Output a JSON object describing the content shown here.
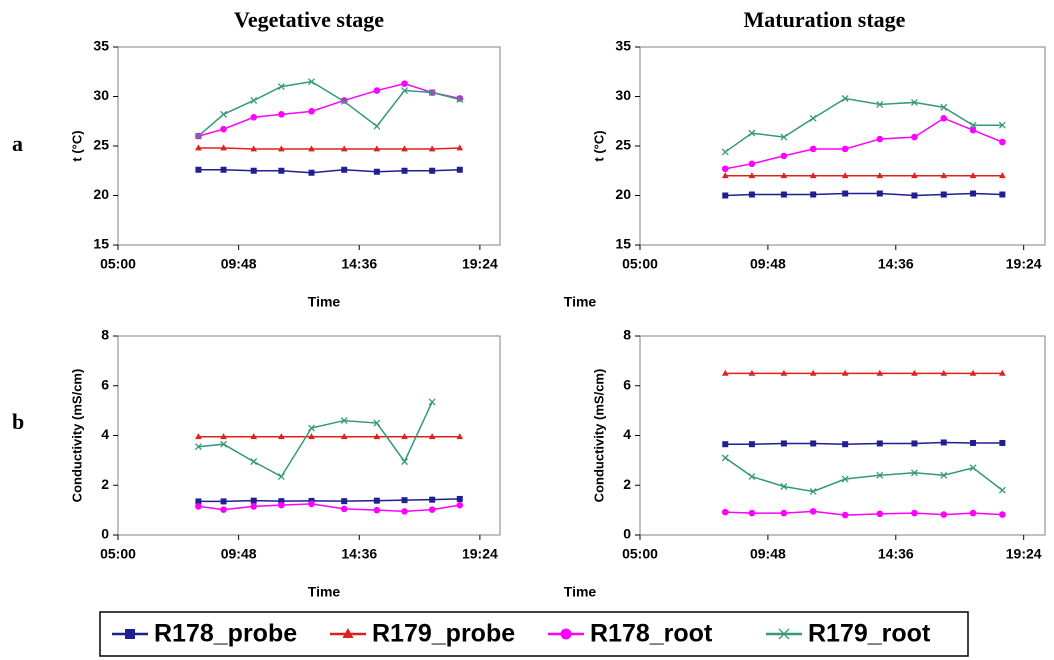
{
  "panel_labels": [
    "a",
    "b"
  ],
  "chart_data": [
    {
      "type": "line",
      "title": "Vegetative stage",
      "xlabel": "Time",
      "ylabel": "t (°C)",
      "x": [
        8.2,
        9.2,
        10.4,
        11.5,
        12.7,
        14.0,
        15.3,
        16.4,
        17.5,
        18.6
      ],
      "xlim": [
        5,
        20.2
      ],
      "xticks": [
        {
          "value": 5,
          "label": "05:00"
        },
        {
          "value": 9.8,
          "label": "09:48"
        },
        {
          "value": 14.6,
          "label": "14:36"
        },
        {
          "value": 19.4,
          "label": "19:24"
        }
      ],
      "ylim": [
        15,
        35
      ],
      "yticks": [
        15,
        20,
        25,
        30,
        35
      ],
      "series": [
        {
          "name": "R178_probe",
          "color": "#1f1f8f",
          "marker": "square",
          "values": [
            22.6,
            22.6,
            22.5,
            22.5,
            22.3,
            22.6,
            22.4,
            22.5,
            22.5,
            22.6
          ]
        },
        {
          "name": "R179_probe",
          "color": "#e0201e",
          "marker": "triangle",
          "values": [
            24.8,
            24.8,
            24.7,
            24.7,
            24.7,
            24.7,
            24.7,
            24.7,
            24.7,
            24.8
          ]
        },
        {
          "name": "R178_root",
          "color": "#ff00ff",
          "marker": "circle",
          "values": [
            26.0,
            26.7,
            27.9,
            28.2,
            28.5,
            29.6,
            30.6,
            31.3,
            30.4,
            29.8
          ]
        },
        {
          "name": "R179_root",
          "color": "#339977",
          "marker": "x",
          "values": [
            26.0,
            28.2,
            29.6,
            31.0,
            31.5,
            29.5,
            27.0,
            30.6,
            30.4,
            29.7
          ]
        }
      ]
    },
    {
      "type": "line",
      "title": "Maturation stage",
      "xlabel": "Time",
      "ylabel": "t (°C)",
      "x": [
        8.2,
        9.2,
        10.4,
        11.5,
        12.7,
        14.0,
        15.3,
        16.4,
        17.5,
        18.6
      ],
      "xlim": [
        5,
        20.2
      ],
      "xticks": [
        {
          "value": 5,
          "label": "05:00"
        },
        {
          "value": 9.8,
          "label": "09:48"
        },
        {
          "value": 14.6,
          "label": "14:36"
        },
        {
          "value": 19.4,
          "label": "19:24"
        }
      ],
      "ylim": [
        15,
        35
      ],
      "yticks": [
        15,
        20,
        25,
        30,
        35
      ],
      "series": [
        {
          "name": "R178_probe",
          "color": "#1f1f8f",
          "marker": "square",
          "values": [
            20.0,
            20.1,
            20.1,
            20.1,
            20.2,
            20.2,
            20.0,
            20.1,
            20.2,
            20.1
          ]
        },
        {
          "name": "R179_probe",
          "color": "#e0201e",
          "marker": "triangle",
          "values": [
            22,
            22,
            22,
            22,
            22,
            22,
            22,
            22,
            22,
            22
          ]
        },
        {
          "name": "R178_root",
          "color": "#ff00ff",
          "marker": "circle",
          "values": [
            22.7,
            23.2,
            24.0,
            24.7,
            24.7,
            25.7,
            25.9,
            27.8,
            26.6,
            25.4
          ]
        },
        {
          "name": "R179_root",
          "color": "#339977",
          "marker": "x",
          "values": [
            24.4,
            26.3,
            25.9,
            27.8,
            29.8,
            29.2,
            29.4,
            28.9,
            27.1,
            27.1
          ]
        }
      ]
    },
    {
      "type": "line",
      "xlabel": "Time",
      "ylabel": "Conductivity (mS/cm)",
      "x": [
        8.2,
        9.2,
        10.4,
        11.5,
        12.7,
        14.0,
        15.3,
        16.4,
        17.5,
        18.6
      ],
      "xlim": [
        5,
        20.2
      ],
      "xticks": [
        {
          "value": 5,
          "label": "05:00"
        },
        {
          "value": 9.8,
          "label": "09:48"
        },
        {
          "value": 14.6,
          "label": "14:36"
        },
        {
          "value": 19.4,
          "label": "19:24"
        }
      ],
      "ylim": [
        0,
        8
      ],
      "yticks": [
        0,
        2,
        4,
        6,
        8
      ],
      "series": [
        {
          "name": "R178_probe",
          "color": "#1f1f8f",
          "marker": "square",
          "values": [
            1.35,
            1.35,
            1.38,
            1.36,
            1.37,
            1.36,
            1.38,
            1.4,
            1.42,
            1.45
          ]
        },
        {
          "name": "R179_probe",
          "color": "#e0201e",
          "marker": "triangle",
          "values": [
            3.95,
            3.95,
            3.95,
            3.95,
            3.95,
            3.95,
            3.95,
            3.95,
            3.95,
            3.95
          ]
        },
        {
          "name": "R178_root",
          "color": "#ff00ff",
          "marker": "circle",
          "values": [
            1.15,
            1.02,
            1.15,
            1.2,
            1.25,
            1.05,
            1.0,
            0.95,
            1.02,
            1.2
          ]
        },
        {
          "name": "R179_root",
          "color": "#339977",
          "marker": "x",
          "values": [
            3.55,
            3.65,
            2.95,
            2.35,
            4.3,
            4.6,
            4.5,
            2.95,
            5.35,
            null
          ]
        }
      ]
    },
    {
      "type": "line",
      "xlabel": "Time",
      "ylabel": "Conductivity (mS/cm)",
      "x": [
        8.2,
        9.2,
        10.4,
        11.5,
        12.7,
        14.0,
        15.3,
        16.4,
        17.5,
        18.6
      ],
      "xlim": [
        5,
        20.2
      ],
      "xticks": [
        {
          "value": 5,
          "label": "05:00"
        },
        {
          "value": 9.8,
          "label": "09:48"
        },
        {
          "value": 14.6,
          "label": "14:36"
        },
        {
          "value": 19.4,
          "label": "19:24"
        }
      ],
      "ylim": [
        0,
        8
      ],
      "yticks": [
        0,
        2,
        4,
        6,
        8
      ],
      "series": [
        {
          "name": "R178_probe",
          "color": "#1f1f8f",
          "marker": "square",
          "values": [
            3.65,
            3.65,
            3.68,
            3.68,
            3.65,
            3.68,
            3.68,
            3.72,
            3.7,
            3.7
          ]
        },
        {
          "name": "R179_probe",
          "color": "#e0201e",
          "marker": "triangle",
          "values": [
            6.5,
            6.5,
            6.5,
            6.5,
            6.5,
            6.5,
            6.5,
            6.5,
            6.5,
            6.5
          ]
        },
        {
          "name": "R178_root",
          "color": "#ff00ff",
          "marker": "circle",
          "values": [
            0.92,
            0.88,
            0.88,
            0.95,
            0.8,
            0.85,
            0.88,
            0.82,
            0.88,
            0.82
          ]
        },
        {
          "name": "R179_root",
          "color": "#339977",
          "marker": "x",
          "values": [
            3.1,
            2.35,
            1.95,
            1.75,
            2.25,
            2.4,
            2.5,
            2.4,
            2.7,
            1.8
          ]
        }
      ]
    }
  ]
}
